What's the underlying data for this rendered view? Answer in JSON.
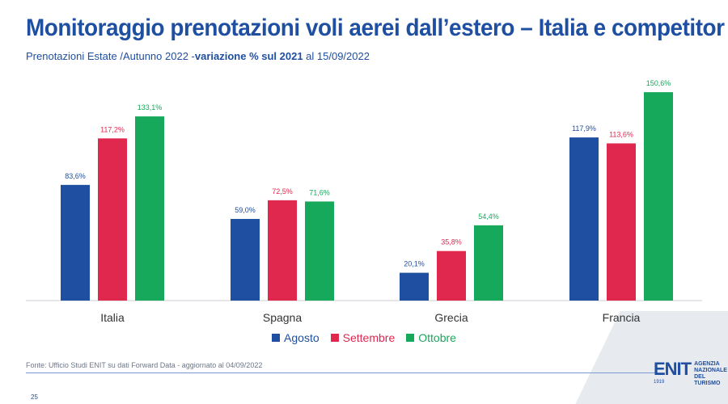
{
  "header": {
    "title": "Monitoraggio prenotazioni voli aerei dall’estero – Italia e competitor",
    "subtitle_prefix": "Prenotazioni Estate /Autunno 2022 -",
    "subtitle_bold": "variazione % sul 2021",
    "subtitle_suffix": " al 15/09/2022"
  },
  "chart_data": {
    "type": "bar",
    "categories": [
      "Italia",
      "Spagna",
      "Grecia",
      "Francia"
    ],
    "series": [
      {
        "name": "Agosto",
        "color": "#1f4fa0",
        "values": [
          83.6,
          59.0,
          20.1,
          117.9
        ],
        "labels": [
          "83,6%",
          "59,0%",
          "20,1%",
          "117,9%"
        ]
      },
      {
        "name": "Settembre",
        "color": "#e0284f",
        "values": [
          117.2,
          72.5,
          35.8,
          113.6
        ],
        "labels": [
          "117,2%",
          "72,5%",
          "35,8%",
          "113,6%"
        ]
      },
      {
        "name": "Ottobre",
        "color": "#16a85b",
        "values": [
          133.1,
          71.6,
          54.4,
          150.6
        ],
        "labels": [
          "133,1%",
          "71,6%",
          "54,4%",
          "150,6%"
        ]
      }
    ],
    "ylim": [
      0,
      160
    ],
    "grid": false,
    "legend": "bottom-center"
  },
  "footer": {
    "source": "Fonte: Ufficio Studi ENIT su dati Forward Data - aggiornato al 04/09/2022",
    "page": "25"
  },
  "logo": {
    "mark": "ENIT",
    "year": "1919",
    "line1": "AGENZIA",
    "line2": "NAZIONALE",
    "line3": "DEL TURISMO"
  }
}
